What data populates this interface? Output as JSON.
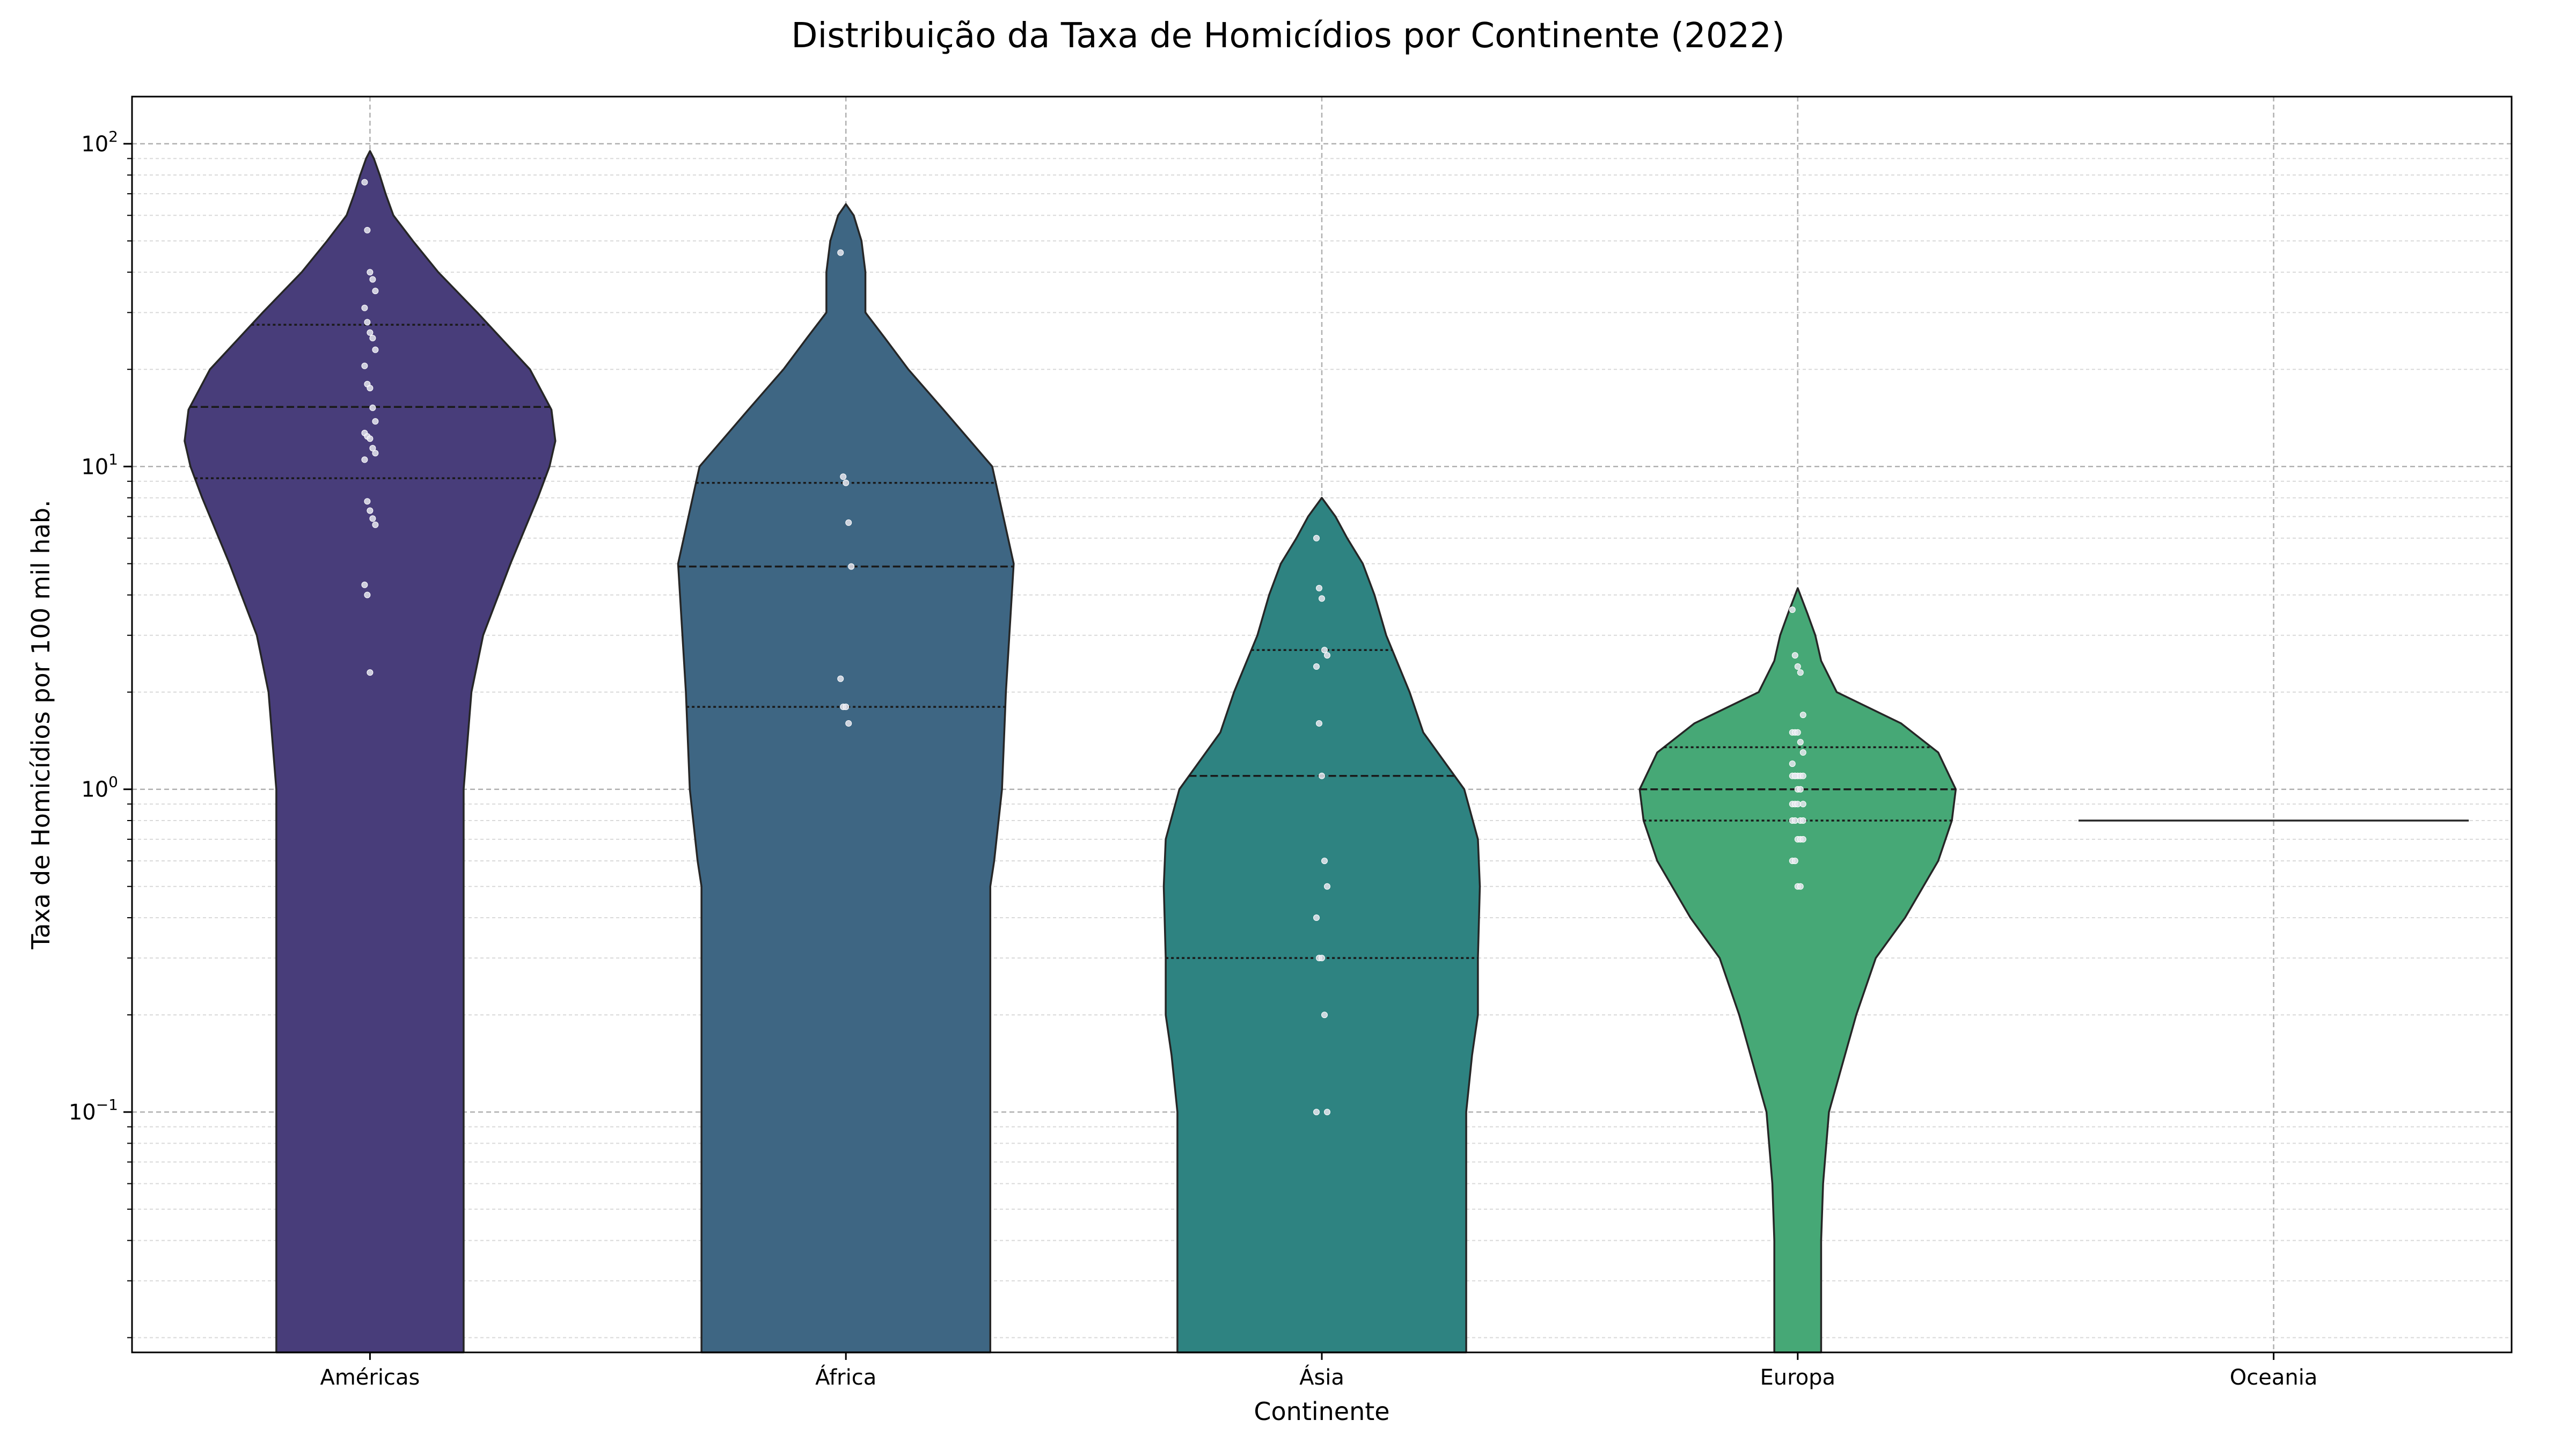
{
  "chart_data": {
    "type": "violin",
    "title": "Distribuição da Taxa de Homicídios por Continente (2022)",
    "xlabel": "Continente",
    "ylabel": "Taxa de Homicídios por 100 mil hab.",
    "yscale": "log",
    "ylim": [
      0.018,
      140
    ],
    "yticks": [
      {
        "value": 0.1,
        "base": "10",
        "exp": "−1"
      },
      {
        "value": 1,
        "base": "10",
        "exp": "0"
      },
      {
        "value": 10,
        "base": "10",
        "exp": "1"
      },
      {
        "value": 100,
        "base": "10",
        "exp": "2"
      }
    ],
    "grid": "both",
    "categories": [
      "Américas",
      "África",
      "Ásia",
      "Europa",
      "Oceania"
    ],
    "series": [
      {
        "category": "Américas",
        "color": "#483d7a",
        "quartiles": [
          9.2,
          15.3,
          27.5
        ],
        "points": [
          76,
          54,
          40,
          38,
          35,
          31,
          28,
          26,
          25,
          23,
          20.5,
          18,
          17.5,
          15.2,
          13.8,
          12.7,
          12.4,
          12.2,
          11.4,
          11,
          10.5,
          7.8,
          7.3,
          6.9,
          6.6,
          4.3,
          4,
          2.3
        ],
        "profile": [
          [
            0.018,
            0.48
          ],
          [
            0.5,
            0.48
          ],
          [
            1,
            0.48
          ],
          [
            2,
            0.52
          ],
          [
            3,
            0.58
          ],
          [
            5,
            0.72
          ],
          [
            8,
            0.86
          ],
          [
            10,
            0.92
          ],
          [
            12,
            0.95
          ],
          [
            15,
            0.93
          ],
          [
            20,
            0.82
          ],
          [
            30,
            0.55
          ],
          [
            40,
            0.35
          ],
          [
            50,
            0.22
          ],
          [
            60,
            0.12
          ],
          [
            70,
            0.08
          ],
          [
            80,
            0.05
          ],
          [
            90,
            0.02
          ],
          [
            95,
            0
          ]
        ]
      },
      {
        "category": "África",
        "color": "#3e6683",
        "quartiles": [
          1.8,
          4.9,
          8.9
        ],
        "points": [
          46,
          9.3,
          8.9,
          6.7,
          4.9,
          2.2,
          1.8,
          1.8,
          1.6
        ],
        "profile": [
          [
            0.018,
            0.74
          ],
          [
            0.3,
            0.74
          ],
          [
            0.5,
            0.74
          ],
          [
            0.6,
            0.76
          ],
          [
            1,
            0.8
          ],
          [
            2,
            0.82
          ],
          [
            5,
            0.86
          ],
          [
            10,
            0.75
          ],
          [
            15,
            0.5
          ],
          [
            20,
            0.32
          ],
          [
            25,
            0.2
          ],
          [
            30,
            0.1
          ],
          [
            40,
            0.1
          ],
          [
            50,
            0.08
          ],
          [
            60,
            0.04
          ],
          [
            65,
            0
          ]
        ]
      },
      {
        "category": "Ásia",
        "color": "#2e8381",
        "quartiles": [
          0.3,
          1.1,
          2.7
        ],
        "points": [
          6,
          4.2,
          3.9,
          2.7,
          2.6,
          2.4,
          1.6,
          1.1,
          0.6,
          0.5,
          0.4,
          0.3,
          0.3,
          0.2,
          0.1,
          0.1
        ],
        "profile": [
          [
            0.018,
            0.74
          ],
          [
            0.1,
            0.74
          ],
          [
            0.15,
            0.77
          ],
          [
            0.2,
            0.8
          ],
          [
            0.3,
            0.8
          ],
          [
            0.5,
            0.81
          ],
          [
            0.7,
            0.8
          ],
          [
            1,
            0.73
          ],
          [
            1.5,
            0.52
          ],
          [
            2,
            0.45
          ],
          [
            3,
            0.33
          ],
          [
            4,
            0.27
          ],
          [
            5,
            0.21
          ],
          [
            6,
            0.13
          ],
          [
            7,
            0.07
          ],
          [
            8,
            0
          ]
        ]
      },
      {
        "category": "Europa",
        "color": "#46a876",
        "quartiles": [
          0.8,
          1,
          1.35
        ],
        "points": [
          3.6,
          2.6,
          2.4,
          2.3,
          1.7,
          1.5,
          1.5,
          1.5,
          1.4,
          1.3,
          1.2,
          1.1,
          1.1,
          1.1,
          1.1,
          1.1,
          1.1,
          1,
          1,
          0.9,
          0.9,
          0.9,
          0.9,
          0.8,
          0.8,
          0.8,
          0.8,
          0.7,
          0.7,
          0.7,
          0.6,
          0.6,
          0.5,
          0.5
        ],
        "profile": [
          [
            0.018,
            0.12
          ],
          [
            0.04,
            0.12
          ],
          [
            0.06,
            0.13
          ],
          [
            0.1,
            0.16
          ],
          [
            0.2,
            0.3
          ],
          [
            0.3,
            0.4
          ],
          [
            0.4,
            0.55
          ],
          [
            0.6,
            0.72
          ],
          [
            0.8,
            0.79
          ],
          [
            1,
            0.81
          ],
          [
            1.3,
            0.72
          ],
          [
            1.6,
            0.53
          ],
          [
            2,
            0.2
          ],
          [
            2.5,
            0.12
          ],
          [
            3,
            0.09
          ],
          [
            3.5,
            0.05
          ],
          [
            4.2,
            0
          ]
        ]
      },
      {
        "category": "Oceania",
        "color": "#3b3b3b",
        "quartiles": [
          0.8,
          0.8,
          0.8
        ],
        "points": [],
        "line_value": 0.8,
        "profile": []
      }
    ]
  }
}
